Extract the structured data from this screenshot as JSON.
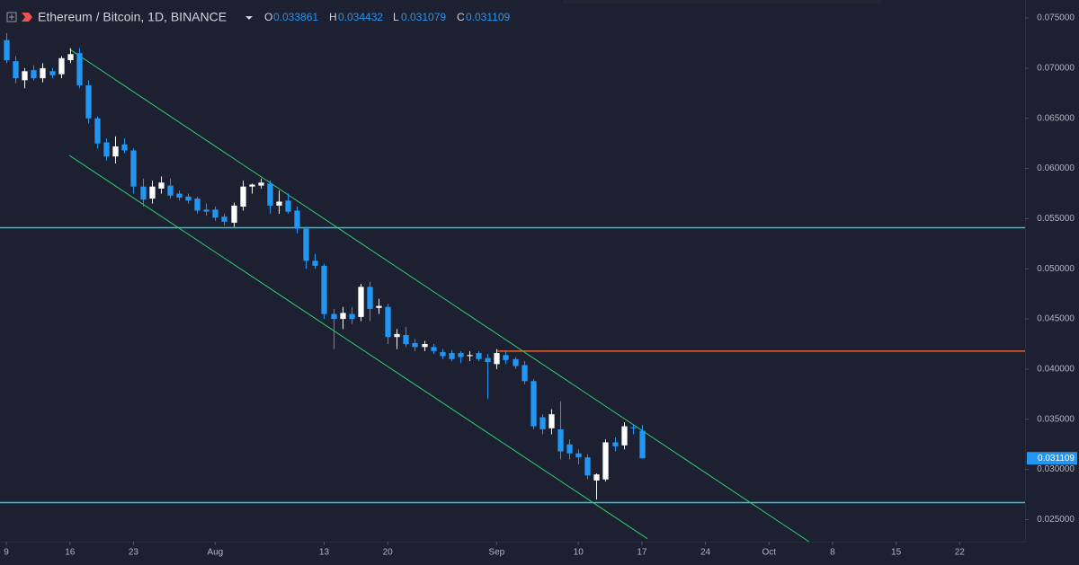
{
  "chart_data": {
    "type": "candlestick",
    "title": "Ethereum / Bitcoin, 1D, BINANCE",
    "ohlc_labels": [
      "O",
      "H",
      "L",
      "C"
    ],
    "up_color": "#ffffff",
    "down_color": "#2196f3",
    "x": [
      0,
      1,
      2,
      3,
      4,
      5,
      6,
      7,
      8,
      9,
      10,
      11,
      12,
      13,
      14,
      15,
      16,
      17,
      18,
      19,
      20,
      21,
      22,
      23,
      24,
      25,
      26,
      27,
      28,
      29,
      30,
      31,
      32,
      33,
      34,
      35,
      36,
      37,
      38,
      39,
      40,
      41,
      42,
      43,
      44,
      45,
      46,
      47,
      48,
      49,
      50,
      51,
      52,
      53,
      54,
      55,
      56,
      57,
      58,
      59,
      60,
      61,
      62,
      63,
      64,
      65,
      66,
      67,
      68,
      69,
      70
    ],
    "open": [
      0.0728,
      0.0707,
      0.0688,
      0.0698,
      0.069,
      0.0697,
      0.0694,
      0.0708,
      0.0715,
      0.0683,
      0.065,
      0.0626,
      0.0612,
      0.0624,
      0.0618,
      0.0582,
      0.057,
      0.058,
      0.0583,
      0.0575,
      0.0572,
      0.057,
      0.0559,
      0.0559,
      0.0552,
      0.0546,
      0.0562,
      0.0582,
      0.0583,
      0.0585,
      0.0563,
      0.0568,
      0.0558,
      0.054,
      0.0508,
      0.0503,
      0.0455,
      0.045,
      0.0455,
      0.0452,
      0.0482,
      0.0461,
      0.0462,
      0.0432,
      0.0434,
      0.0426,
      0.0422,
      0.0422,
      0.0417,
      0.0416,
      0.0416,
      0.0413,
      0.0416,
      0.0411,
      0.0405,
      0.0414,
      0.041,
      0.0404,
      0.0388,
      0.0352,
      0.0341,
      0.034,
      0.0325,
      0.0316,
      0.0312,
      0.0289,
      0.029,
      0.0327,
      0.0324,
      0.0342,
      0.033861
    ],
    "high": [
      0.0735,
      0.0712,
      0.07,
      0.0703,
      0.0705,
      0.07,
      0.0712,
      0.072,
      0.072,
      0.0688,
      0.0652,
      0.063,
      0.0632,
      0.063,
      0.062,
      0.059,
      0.0588,
      0.0592,
      0.059,
      0.0578,
      0.0575,
      0.0572,
      0.0565,
      0.0562,
      0.0555,
      0.0566,
      0.0588,
      0.0585,
      0.059,
      0.0588,
      0.0578,
      0.0575,
      0.0562,
      0.0542,
      0.0515,
      0.0505,
      0.046,
      0.0462,
      0.0462,
      0.0485,
      0.0487,
      0.047,
      0.0465,
      0.044,
      0.0442,
      0.043,
      0.0428,
      0.0425,
      0.042,
      0.0419,
      0.0418,
      0.0418,
      0.0418,
      0.0415,
      0.042,
      0.0418,
      0.0412,
      0.0408,
      0.039,
      0.0355,
      0.036,
      0.0368,
      0.033,
      0.032,
      0.0315,
      0.0296,
      0.033,
      0.0332,
      0.0347,
      0.0345,
      0.034432
    ],
    "low": [
      0.0705,
      0.0685,
      0.068,
      0.0688,
      0.0686,
      0.069,
      0.069,
      0.0705,
      0.068,
      0.0645,
      0.062,
      0.0608,
      0.0605,
      0.0615,
      0.0575,
      0.0562,
      0.0565,
      0.0575,
      0.057,
      0.0568,
      0.0565,
      0.0555,
      0.0553,
      0.0548,
      0.0543,
      0.0542,
      0.0558,
      0.0575,
      0.058,
      0.0555,
      0.0555,
      0.0555,
      0.0535,
      0.05,
      0.05,
      0.045,
      0.042,
      0.044,
      0.0445,
      0.0448,
      0.0448,
      0.0455,
      0.0425,
      0.042,
      0.0422,
      0.0418,
      0.0418,
      0.0415,
      0.041,
      0.0408,
      0.0406,
      0.0408,
      0.0408,
      0.037,
      0.04,
      0.0405,
      0.04,
      0.0385,
      0.034,
      0.0335,
      0.0335,
      0.031,
      0.031,
      0.0305,
      0.029,
      0.027,
      0.0288,
      0.0318,
      0.032,
      0.0335,
      0.031079
    ],
    "close": [
      0.0708,
      0.069,
      0.0697,
      0.069,
      0.07,
      0.0693,
      0.071,
      0.0714,
      0.0683,
      0.065,
      0.0625,
      0.0612,
      0.0622,
      0.0618,
      0.0582,
      0.0569,
      0.0582,
      0.0586,
      0.0573,
      0.0571,
      0.0568,
      0.0558,
      0.0557,
      0.0551,
      0.0547,
      0.0563,
      0.0582,
      0.0584,
      0.0586,
      0.0563,
      0.0567,
      0.0557,
      0.054,
      0.0508,
      0.0503,
      0.0455,
      0.045,
      0.0456,
      0.045,
      0.0482,
      0.046,
      0.0463,
      0.0432,
      0.0435,
      0.0425,
      0.0422,
      0.0425,
      0.0418,
      0.0413,
      0.041,
      0.0412,
      0.0414,
      0.041,
      0.0407,
      0.0416,
      0.0409,
      0.0403,
      0.0388,
      0.0343,
      0.034,
      0.0355,
      0.0318,
      0.0316,
      0.0312,
      0.0294,
      0.0295,
      0.0327,
      0.0323,
      0.0343,
      0.0341,
      0.031109
    ],
    "xlim": [
      -0.7,
      112.2
    ],
    "xticks": [
      {
        "value": 0,
        "label": "9"
      },
      {
        "value": 7,
        "label": "16"
      },
      {
        "value": 14,
        "label": "23"
      },
      {
        "value": 23,
        "label": "Aug"
      },
      {
        "value": 35,
        "label": "13"
      },
      {
        "value": 42,
        "label": "20"
      },
      {
        "value": 54,
        "label": "Sep"
      },
      {
        "value": 63,
        "label": "10"
      },
      {
        "value": 70,
        "label": "17"
      },
      {
        "value": 77,
        "label": "24"
      },
      {
        "value": 84,
        "label": "Oct"
      },
      {
        "value": 91,
        "label": "8"
      },
      {
        "value": 98,
        "label": "15"
      },
      {
        "value": 105,
        "label": "22"
      }
    ],
    "ylim": [
      0.0228,
      0.0768
    ],
    "yticks": [
      {
        "value": 0.025,
        "label": "0.025000"
      },
      {
        "value": 0.03,
        "label": "0.030000"
      },
      {
        "value": 0.035,
        "label": "0.035000"
      },
      {
        "value": 0.04,
        "label": "0.040000"
      },
      {
        "value": 0.045,
        "label": "0.045000"
      },
      {
        "value": 0.05,
        "label": "0.050000"
      },
      {
        "value": 0.055,
        "label": "0.055000"
      },
      {
        "value": 0.06,
        "label": "0.060000"
      },
      {
        "value": 0.065,
        "label": "0.065000"
      },
      {
        "value": 0.07,
        "label": "0.070000"
      },
      {
        "value": 0.075,
        "label": "0.075000"
      }
    ],
    "levels": [
      {
        "value": 0.0541,
        "color": "#26c6da"
      },
      {
        "value": 0.0267,
        "color": "#26c6da"
      },
      {
        "value": 0.0418,
        "color": "#e0622b",
        "start_x": 54
      }
    ],
    "trendlines": [
      {
        "color": "#2ecc71",
        "points": [
          [
            6.95,
            0.0719
          ],
          [
            88.4,
            0.0228
          ]
        ]
      },
      {
        "color": "#2ecc71",
        "points": [
          [
            6.95,
            0.0613
          ],
          [
            70.6,
            0.0231
          ]
        ]
      }
    ]
  }
}
